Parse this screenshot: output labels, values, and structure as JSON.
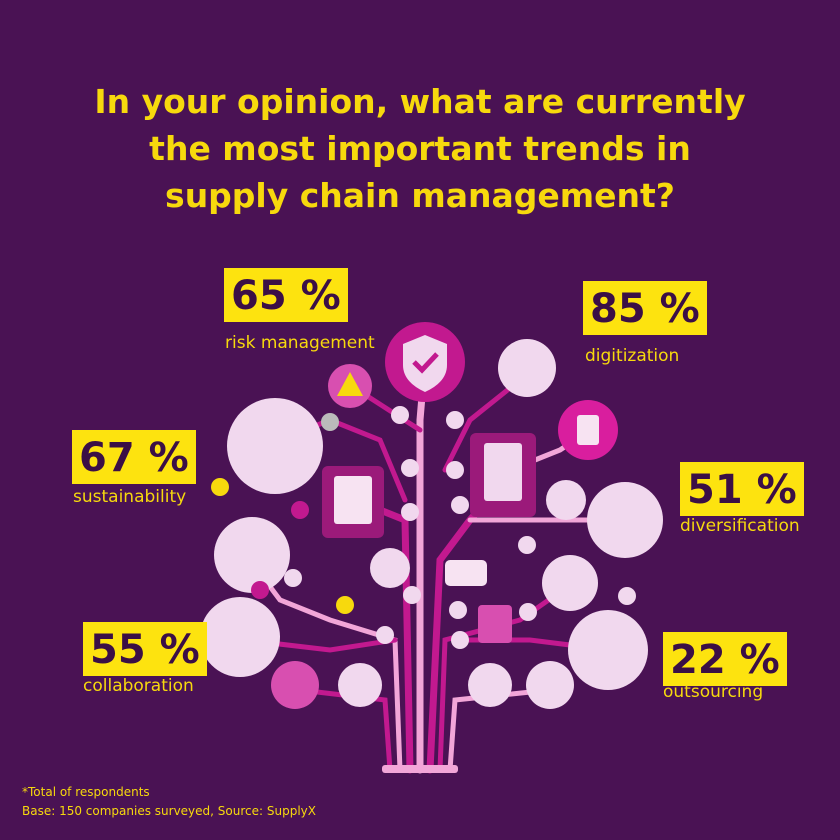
{
  "title_lines": [
    "In your opinion, what are currently",
    "the most important trends in",
    "supply chain management?"
  ],
  "items": [
    {
      "value": "65 %",
      "label": "risk management"
    },
    {
      "value": "85 %",
      "label": "digitization"
    },
    {
      "value": "67 %",
      "label": "sustainability"
    },
    {
      "value": "51 %",
      "label": "diversification"
    },
    {
      "value": "55 %",
      "label": "collaboration"
    },
    {
      "value": "22 %",
      "label": "outsourcing"
    }
  ],
  "footnote": [
    "*Total of respondents",
    "Base: 150 companies surveyed, Source: SupplyX"
  ]
}
